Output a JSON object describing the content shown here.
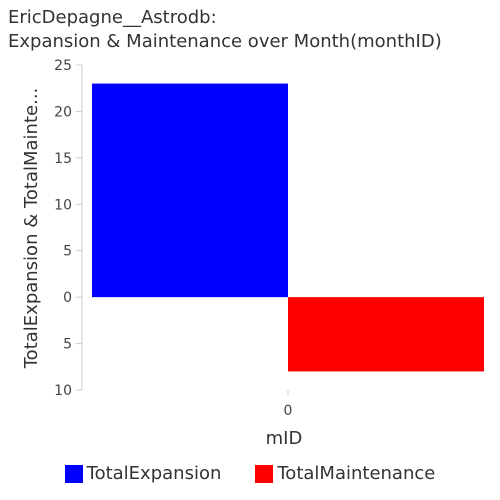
{
  "chart_data": {
    "type": "bar",
    "title_line1": "EricDepagne__Astrodb:",
    "title_line2": "Expansion & Maintenance over Month(monthID)",
    "xlabel": "mID",
    "ylabel": "TotalExpansion & TotalMainte...",
    "categories": [
      "0"
    ],
    "series": [
      {
        "name": "TotalExpansion",
        "values": [
          23
        ],
        "color": "#0000ff"
      },
      {
        "name": "TotalMaintenance",
        "values": [
          -8
        ],
        "color": "#ff0000"
      }
    ],
    "ylim": [
      -10,
      25
    ],
    "yticks": [
      {
        "value": 25,
        "label": "25"
      },
      {
        "value": 20,
        "label": "20"
      },
      {
        "value": 15,
        "label": "15"
      },
      {
        "value": 10,
        "label": "10"
      },
      {
        "value": 5,
        "label": "5"
      },
      {
        "value": 0,
        "label": "0"
      },
      {
        "value": -5,
        "label": "5"
      },
      {
        "value": -10,
        "label": "10"
      }
    ],
    "grid": false,
    "legend_position": "bottom"
  }
}
